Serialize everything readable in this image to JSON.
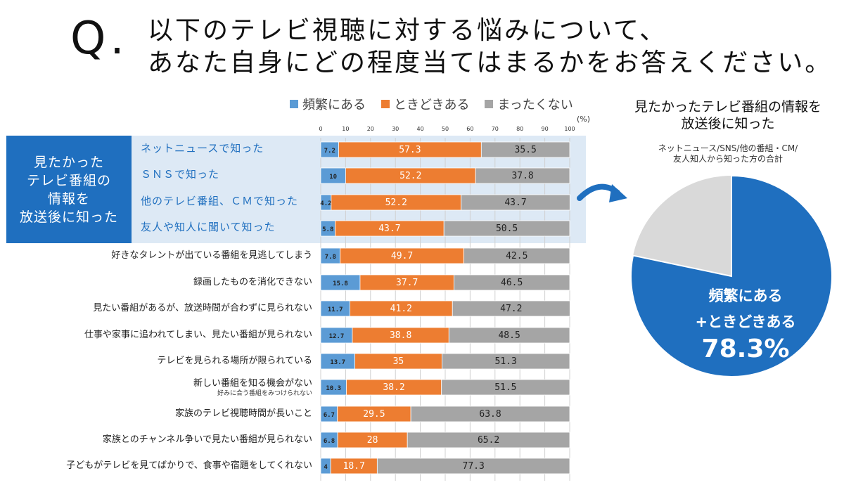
{
  "question": {
    "mark": "Q.",
    "line1": "以下のテレビ視聴に対する悩みについて、",
    "line2": "あなた自身にどの程度当てはまるかをお答えください。"
  },
  "group_label": "見たかった\nテレビ番組の\n情報を\n放送後に知った",
  "pie": {
    "title": "見たかったテレビ番組の情報を\n放送後に知った",
    "note": "ネットニュース/SNS/他の番組・CM/\n友人知人から知った方の合計",
    "text1": "頻繁にある",
    "text2": "+ときどきある",
    "text3": "78.3%",
    "value": 78.3,
    "colors": {
      "main": "#1f6fbf",
      "rest": "#d9d9d9"
    }
  },
  "chart_data": {
    "type": "bar",
    "orientation": "horizontal-stacked-100",
    "unit": "(%)",
    "xlim": [
      0,
      100
    ],
    "ticks": [
      "0",
      "10",
      "20",
      "30",
      "40",
      "50",
      "60",
      "70",
      "80",
      "90",
      "100"
    ],
    "legend": [
      "頻繁にある",
      "ときどきある",
      "まったくない"
    ],
    "legend_position": "top",
    "colors": [
      "#5b9bd5",
      "#ed7d31",
      "#a5a5a5"
    ],
    "categories": [
      {
        "label": "ネットニュースで知った",
        "highlight": true,
        "values": [
          7.2,
          57.3,
          35.5
        ],
        "labels": [
          "7.2",
          "57.3",
          "35.5"
        ]
      },
      {
        "label": "ＳＮＳで知った",
        "highlight": true,
        "values": [
          10,
          52.2,
          37.8
        ],
        "labels": [
          "10",
          "52.2",
          "37.8"
        ]
      },
      {
        "label": "他のテレビ番組、ＣＭで知った",
        "highlight": true,
        "values": [
          4.2,
          52.2,
          43.7
        ],
        "labels": [
          "4.2",
          "52.2",
          "43.7"
        ]
      },
      {
        "label": "友人や知人に聞いて知った",
        "highlight": true,
        "values": [
          5.8,
          43.7,
          50.5
        ],
        "labels": [
          "5.8",
          "43.7",
          "50.5"
        ]
      },
      {
        "label": "好きなタレントが出ている番組を見逃してしまう",
        "values": [
          7.8,
          49.7,
          42.5
        ],
        "labels": [
          "7.8",
          "49.7",
          "42.5"
        ]
      },
      {
        "label": "録画したものを消化できない",
        "values": [
          15.8,
          37.7,
          46.5
        ],
        "labels": [
          "15.8",
          "37.7",
          "46.5"
        ]
      },
      {
        "label": "見たい番組があるが、放送時間が合わずに見られない",
        "values": [
          11.7,
          41.2,
          47.2
        ],
        "labels": [
          "11.7",
          "41.2",
          "47.2"
        ]
      },
      {
        "label": "仕事や家事に追われてしまい、見たい番組が見られない",
        "values": [
          12.7,
          38.8,
          48.5
        ],
        "labels": [
          "12.7",
          "38.8",
          "48.5"
        ]
      },
      {
        "label": "テレビを見られる場所が限られている",
        "values": [
          13.7,
          35,
          51.3
        ],
        "labels": [
          "13.7",
          "35",
          "51.3"
        ]
      },
      {
        "label": "新しい番組を知る機会がない",
        "sublabel": "好みに合う番組をみつけられない",
        "values": [
          10.3,
          38.2,
          51.5
        ],
        "labels": [
          "10.3",
          "38.2",
          "51.5"
        ]
      },
      {
        "label": "家族のテレビ視聴時間が長いこと",
        "values": [
          6.7,
          29.5,
          63.8
        ],
        "labels": [
          "6.7",
          "29.5",
          "63.8"
        ]
      },
      {
        "label": "家族とのチャンネル争いで見たい番組が見られない",
        "values": [
          6.8,
          28,
          65.2
        ],
        "labels": [
          "6.8",
          "28",
          "65.2"
        ]
      },
      {
        "label": "子どもがテレビを見てばかりで、食事や宿題をしてくれない",
        "values": [
          4,
          18.7,
          77.3
        ],
        "labels": [
          "4",
          "18.7",
          "77.3"
        ]
      }
    ]
  }
}
